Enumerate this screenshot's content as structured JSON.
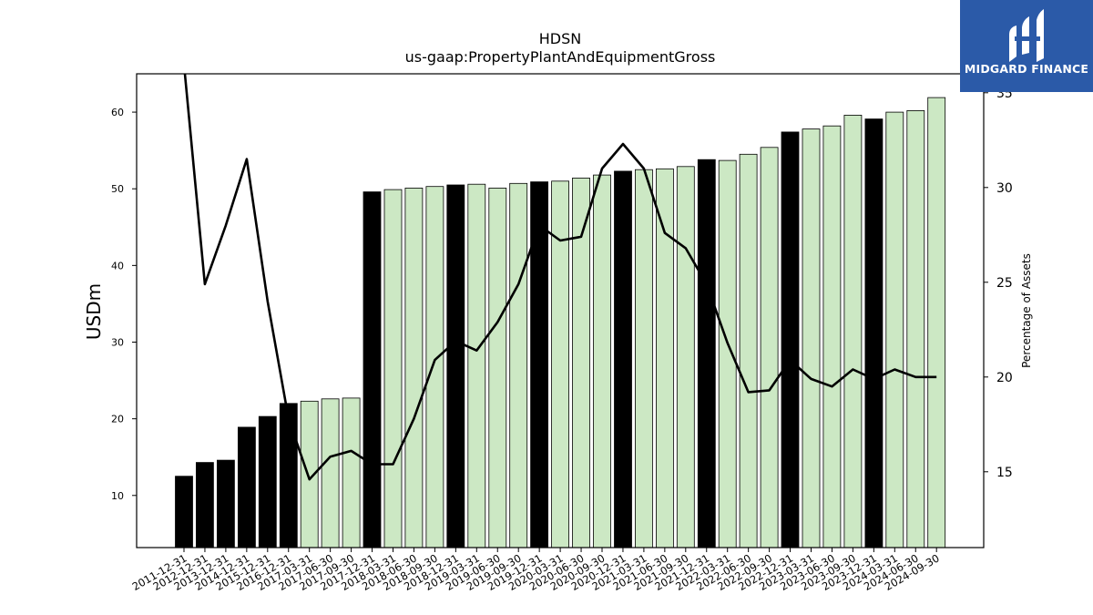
{
  "chart_data": {
    "type": "bar",
    "title": "HDSN",
    "subtitle": "us-gaap:PropertyPlantAndEquipmentGross",
    "ylabel": "USDm",
    "y2label": "Percentage of Assets",
    "ylim": [
      3.2,
      65.0
    ],
    "y2lim": [
      11.0,
      36.0
    ],
    "yticks": [
      10,
      20,
      30,
      40,
      50,
      60
    ],
    "y2ticks": [
      15,
      20,
      25,
      30,
      35
    ],
    "categories": [
      "2011-12-31",
      "2012-12-31",
      "2013-12-31",
      "2014-12-31",
      "2015-12-31",
      "2016-12-31",
      "2017-03-31",
      "2017-06-30",
      "2017-09-30",
      "2017-12-31",
      "2018-03-31",
      "2018-06-30",
      "2018-09-30",
      "2018-12-31",
      "2019-03-31",
      "2019-06-30",
      "2019-09-30",
      "2019-12-31",
      "2020-03-31",
      "2020-06-30",
      "2020-09-30",
      "2020-12-31",
      "2021-03-31",
      "2021-06-30",
      "2021-09-30",
      "2021-12-31",
      "2022-03-31",
      "2022-06-30",
      "2022-09-30",
      "2022-12-31",
      "2023-03-31",
      "2023-06-30",
      "2023-09-30",
      "2023-12-31",
      "2024-03-31",
      "2024-06-30",
      "2024-09-30"
    ],
    "series": [
      {
        "kind": "bar",
        "values": [
          12.5,
          14.3,
          14.6,
          18.9,
          20.3,
          22.0,
          22.3,
          22.6,
          22.7,
          49.6,
          49.9,
          50.1,
          50.3,
          50.5,
          50.6,
          50.1,
          50.7,
          50.9,
          51.0,
          51.4,
          51.8,
          52.3,
          52.5,
          52.6,
          52.9,
          53.8,
          53.7,
          54.5,
          55.4,
          57.4,
          57.8,
          58.2,
          59.6,
          59.1,
          60.0,
          60.2,
          61.9
        ],
        "colors": [
          "#000000",
          "#000000",
          "#000000",
          "#000000",
          "#000000",
          "#000000",
          "#cce8c4",
          "#cce8c4",
          "#cce8c4",
          "#000000",
          "#cce8c4",
          "#cce8c4",
          "#cce8c4",
          "#000000",
          "#cce8c4",
          "#cce8c4",
          "#cce8c4",
          "#000000",
          "#cce8c4",
          "#cce8c4",
          "#cce8c4",
          "#000000",
          "#cce8c4",
          "#cce8c4",
          "#cce8c4",
          "#000000",
          "#cce8c4",
          "#cce8c4",
          "#cce8c4",
          "#000000",
          "#cce8c4",
          "#cce8c4",
          "#cce8c4",
          "#000000",
          "#cce8c4",
          "#cce8c4",
          "#cce8c4"
        ]
      },
      {
        "kind": "line",
        "axis": "right",
        "color": "#000000",
        "values": [
          36.5,
          24.9,
          28.0,
          31.5,
          24.0,
          17.8,
          14.6,
          15.8,
          16.1,
          15.4,
          15.4,
          17.8,
          20.9,
          21.9,
          21.4,
          22.9,
          24.9,
          28.0,
          27.2,
          27.4,
          31.0,
          32.3,
          31.0,
          27.6,
          26.8,
          24.9,
          21.8,
          19.2,
          19.3,
          20.9,
          19.9,
          19.5,
          20.4,
          19.9,
          20.4,
          20.0,
          20.0
        ]
      }
    ]
  },
  "logo": {
    "text": "MIDGARD FINANCE",
    "background": "#2b5aa8"
  }
}
